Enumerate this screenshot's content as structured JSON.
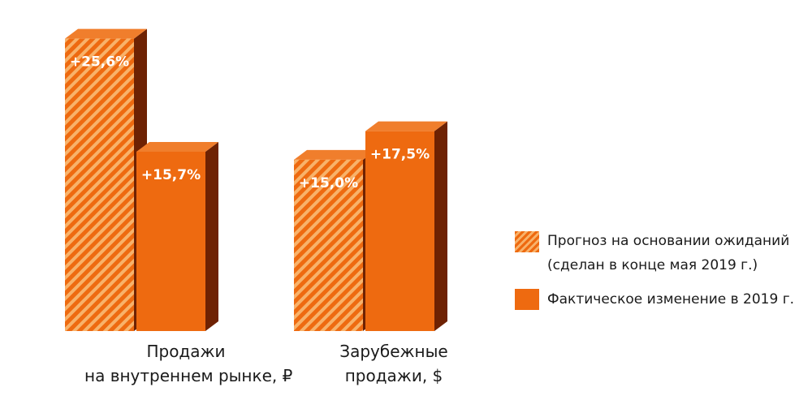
{
  "chart_data": {
    "type": "bar",
    "categories": [
      [
        "Продажи",
        "на внутреннем рынке, ₽"
      ],
      [
        "Зарубежные",
        "продажи, $"
      ]
    ],
    "series": [
      {
        "name": "Прогноз на основании ожиданий (сделан в конце мая 2019 г.)",
        "values": [
          25.6,
          15.0
        ],
        "labels": [
          "+25,6%",
          "+15,0%"
        ],
        "pattern": "hatched"
      },
      {
        "name": "Фактическое изменение в 2019 г.",
        "values": [
          15.7,
          17.5
        ],
        "labels": [
          "+15,7%",
          "+17,5%"
        ],
        "pattern": "solid"
      }
    ],
    "ylim": [
      0,
      26
    ],
    "grid": false,
    "legend_position": "right",
    "colors": {
      "front": "#ee6a10",
      "top": "#f07e2c",
      "side": "#6e2203",
      "hatch": "#f8b26a"
    }
  },
  "legend": {
    "forecast_line1": "Прогноз на основании ожиданий",
    "forecast_line2": "(сделан в конце мая 2019 г.)",
    "actual": "Фактическое изменение в 2019 г."
  }
}
